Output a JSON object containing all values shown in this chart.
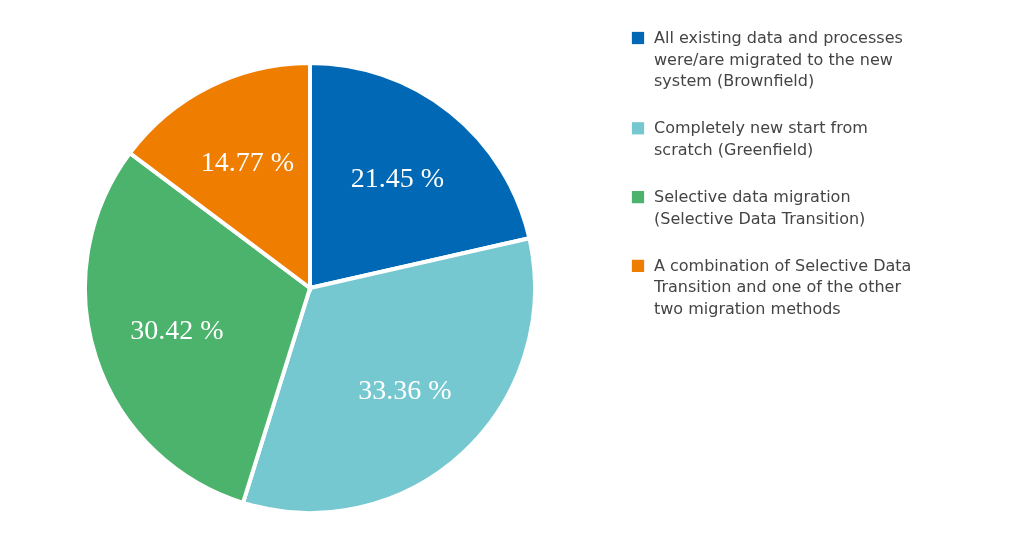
{
  "chart_data": {
    "type": "pie",
    "categories": [
      "All existing data and processes were/are migrated to the new system (Brownfield)",
      "Completely new start from scratch (Greenfield)",
      "Selective data migration (Selective Data Transition)",
      "A combination of Selective Data Transition and one of the other two migration methods"
    ],
    "values": [
      21.45,
      33.36,
      30.42,
      14.77
    ],
    "colors": [
      "#0068b4",
      "#76c8d0",
      "#4bb36b",
      "#ef7d00"
    ],
    "value_labels": [
      "21.45 %",
      "33.36 %",
      "30.42 %",
      "14.77 %"
    ],
    "legend": "top right"
  }
}
